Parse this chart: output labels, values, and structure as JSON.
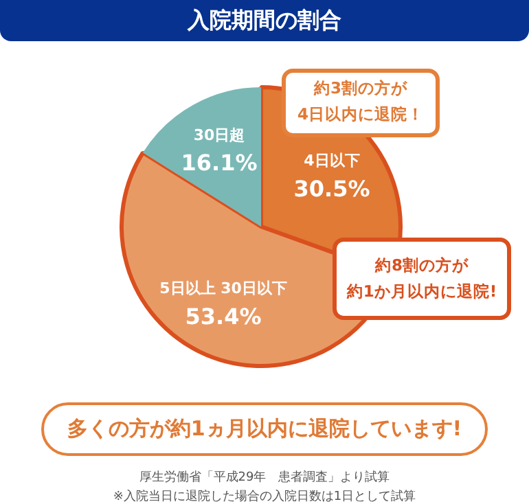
{
  "chart_data": {
    "type": "pie",
    "title": "入院期間の割合",
    "categories": [
      "4日以下",
      "5日以上 30日以下",
      "30日超"
    ],
    "values": [
      30.5,
      53.4,
      16.1
    ],
    "value_labels": [
      "30.5%",
      "53.4%",
      "16.1%"
    ],
    "colors": [
      "#e07a35",
      "#e89a65",
      "#7ab8b5"
    ],
    "legend": false,
    "annotations": [
      "約3割の方が",
      "4日以内に退院！",
      "約8割の方が",
      "約1か月以内に退院!",
      "多くの方が約1ヵ月以内に退院しています!",
      "厚生労働省「平成29年　患者調査」より試算",
      "※入院当日に退院した場合の入院日数は1日として試算"
    ]
  }
}
